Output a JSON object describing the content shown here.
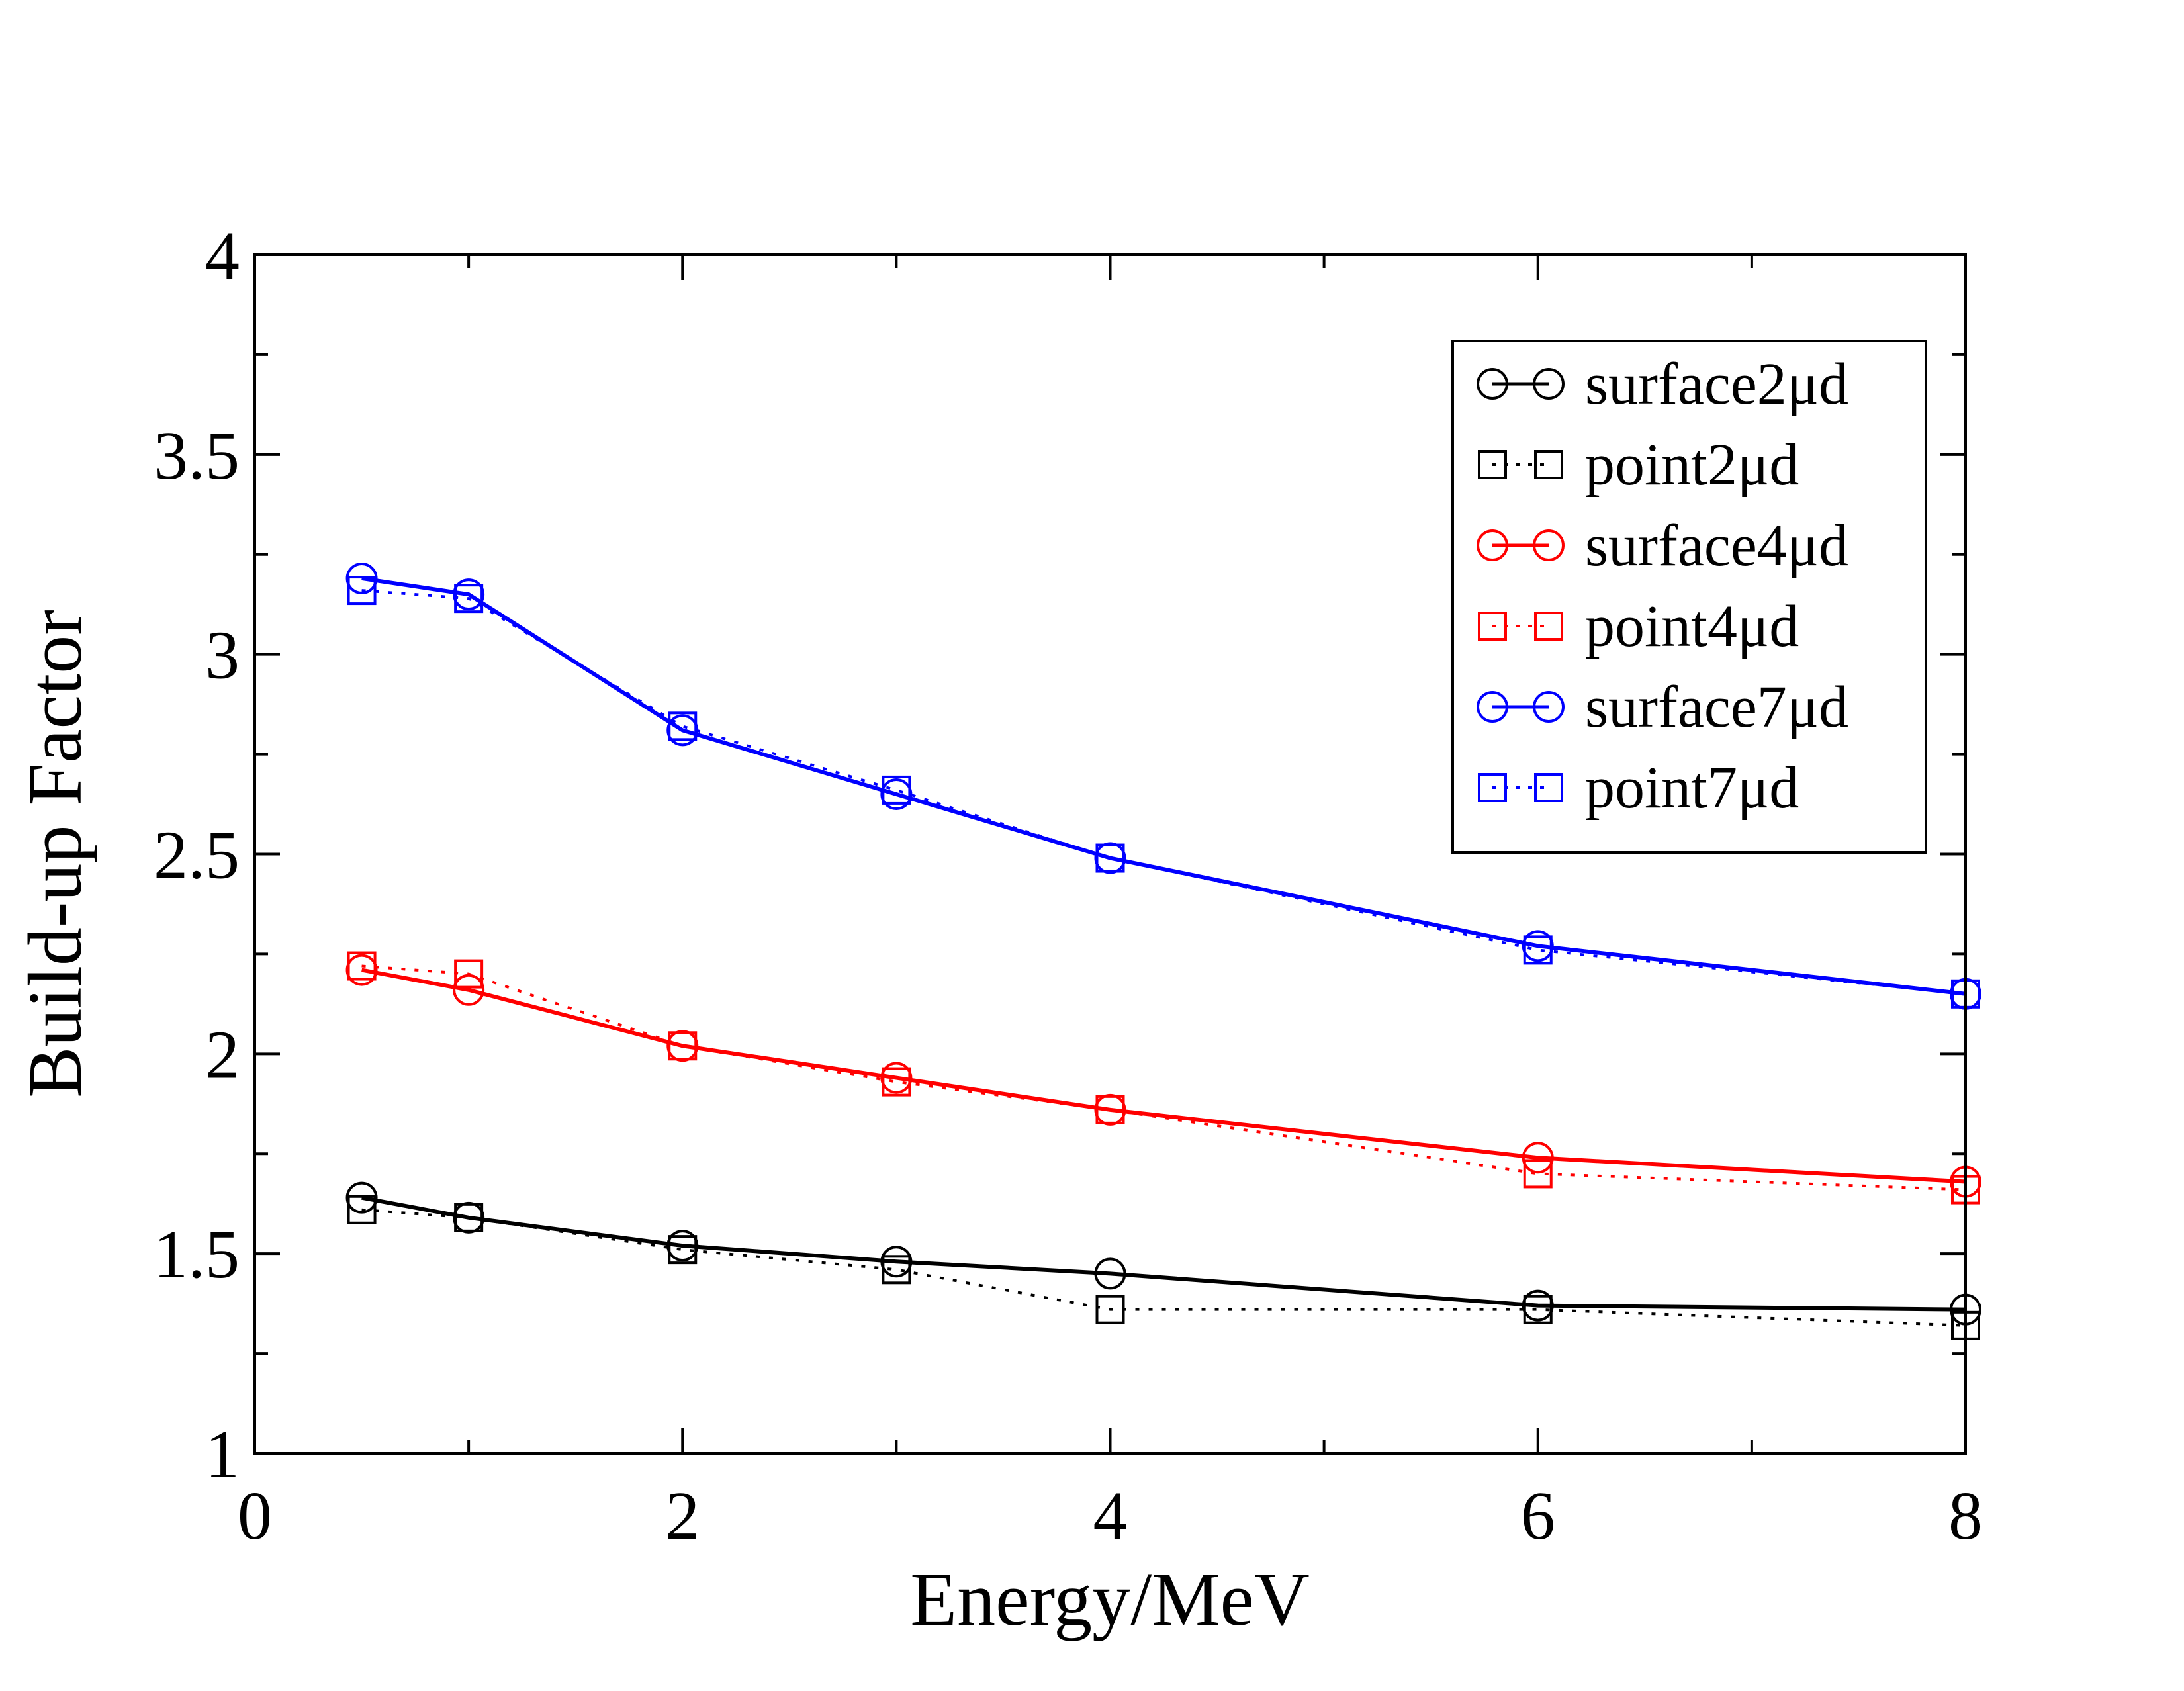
{
  "chart_data": {
    "type": "line",
    "title": "",
    "xlabel": "Energy/MeV",
    "ylabel": "Build-up Factor",
    "xlim": [
      0,
      8
    ],
    "ylim": [
      1,
      4
    ],
    "x_ticks": [
      "0",
      "2",
      "4",
      "6",
      "8"
    ],
    "y_ticks": [
      "1",
      "1.5",
      "2",
      "2.5",
      "3",
      "3.5",
      "4"
    ],
    "x": [
      0.5,
      1,
      2,
      3,
      4,
      6,
      8
    ],
    "legend_position": "top-right",
    "grid": false,
    "series": [
      {
        "name": "surface2μd",
        "color": "#000000",
        "line": "solid",
        "marker": "circle",
        "values": [
          1.64,
          1.59,
          1.52,
          1.48,
          1.45,
          1.37,
          1.36
        ]
      },
      {
        "name": "point2μd",
        "color": "#000000",
        "line": "dotted",
        "marker": "square",
        "values": [
          1.61,
          1.59,
          1.51,
          1.46,
          1.36,
          1.36,
          1.32
        ]
      },
      {
        "name": "surface4μd",
        "color": "#ff0000",
        "line": "solid",
        "marker": "circle",
        "values": [
          2.21,
          2.16,
          2.02,
          1.94,
          1.86,
          1.74,
          1.68
        ]
      },
      {
        "name": "point4μd",
        "color": "#ff0000",
        "line": "dotted",
        "marker": "square",
        "values": [
          2.22,
          2.2,
          2.02,
          1.93,
          1.86,
          1.7,
          1.66
        ]
      },
      {
        "name": "surface7μd",
        "color": "#0000ff",
        "line": "solid",
        "marker": "circle",
        "values": [
          3.19,
          3.15,
          2.81,
          2.65,
          2.49,
          2.27,
          2.15
        ]
      },
      {
        "name": "point7μd",
        "color": "#0000ff",
        "line": "dotted",
        "marker": "square",
        "values": [
          3.16,
          3.14,
          2.82,
          2.66,
          2.49,
          2.26,
          2.15
        ]
      }
    ]
  }
}
